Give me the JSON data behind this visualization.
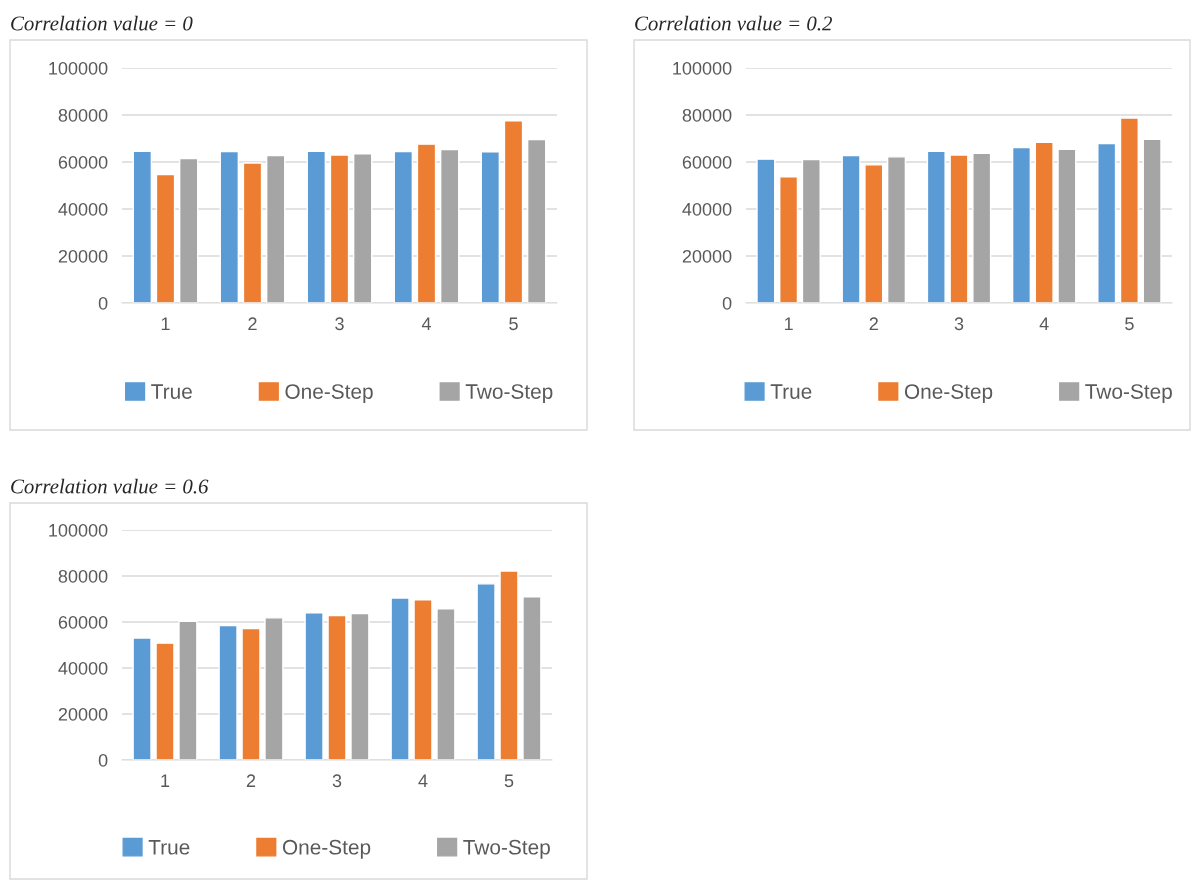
{
  "chart_data": [
    {
      "type": "bar",
      "title": "Correlation value = 0",
      "categories": [
        "1",
        "2",
        "3",
        "4",
        "5"
      ],
      "ylim": [
        0,
        100000
      ],
      "yticks": [
        0,
        20000,
        40000,
        60000,
        80000,
        100000
      ],
      "grid": "y",
      "legend": "bottom",
      "series": [
        {
          "name": "True",
          "color": "#5b9bd5",
          "values": [
            64600,
            64400,
            64600,
            64400,
            64300
          ]
        },
        {
          "name": "One-Step",
          "color": "#ed7d31",
          "values": [
            54700,
            59600,
            63000,
            67600,
            77500
          ]
        },
        {
          "name": "Two-Step",
          "color": "#a5a5a5",
          "values": [
            61500,
            62700,
            63500,
            65300,
            69600
          ]
        }
      ]
    },
    {
      "type": "bar",
      "title": "Correlation value = 0.2",
      "categories": [
        "1",
        "2",
        "3",
        "4",
        "5"
      ],
      "ylim": [
        0,
        100000
      ],
      "yticks": [
        0,
        20000,
        40000,
        60000,
        80000,
        100000
      ],
      "grid": "y",
      "legend": "bottom",
      "series": [
        {
          "name": "True",
          "color": "#5b9bd5",
          "values": [
            61200,
            62700,
            64500,
            66100,
            67800
          ]
        },
        {
          "name": "One-Step",
          "color": "#ed7d31",
          "values": [
            53700,
            58800,
            63000,
            68400,
            78700
          ]
        },
        {
          "name": "Two-Step",
          "color": "#a5a5a5",
          "values": [
            61000,
            62200,
            63700,
            65400,
            69700
          ]
        }
      ]
    },
    {
      "type": "bar",
      "title": "Correlation value = 0.6",
      "categories": [
        "1",
        "2",
        "3",
        "4",
        "5"
      ],
      "ylim": [
        0,
        100000
      ],
      "yticks": [
        0,
        20000,
        40000,
        60000,
        80000,
        100000
      ],
      "grid": "y",
      "legend": "bottom",
      "series": [
        {
          "name": "True",
          "color": "#5b9bd5",
          "values": [
            53000,
            58400,
            64000,
            70400,
            76600
          ]
        },
        {
          "name": "One-Step",
          "color": "#ed7d31",
          "values": [
            50800,
            57200,
            62800,
            69600,
            82200
          ]
        },
        {
          "name": "Two-Step",
          "color": "#a5a5a5",
          "values": [
            60300,
            61800,
            63700,
            65700,
            70900
          ]
        }
      ]
    }
  ]
}
